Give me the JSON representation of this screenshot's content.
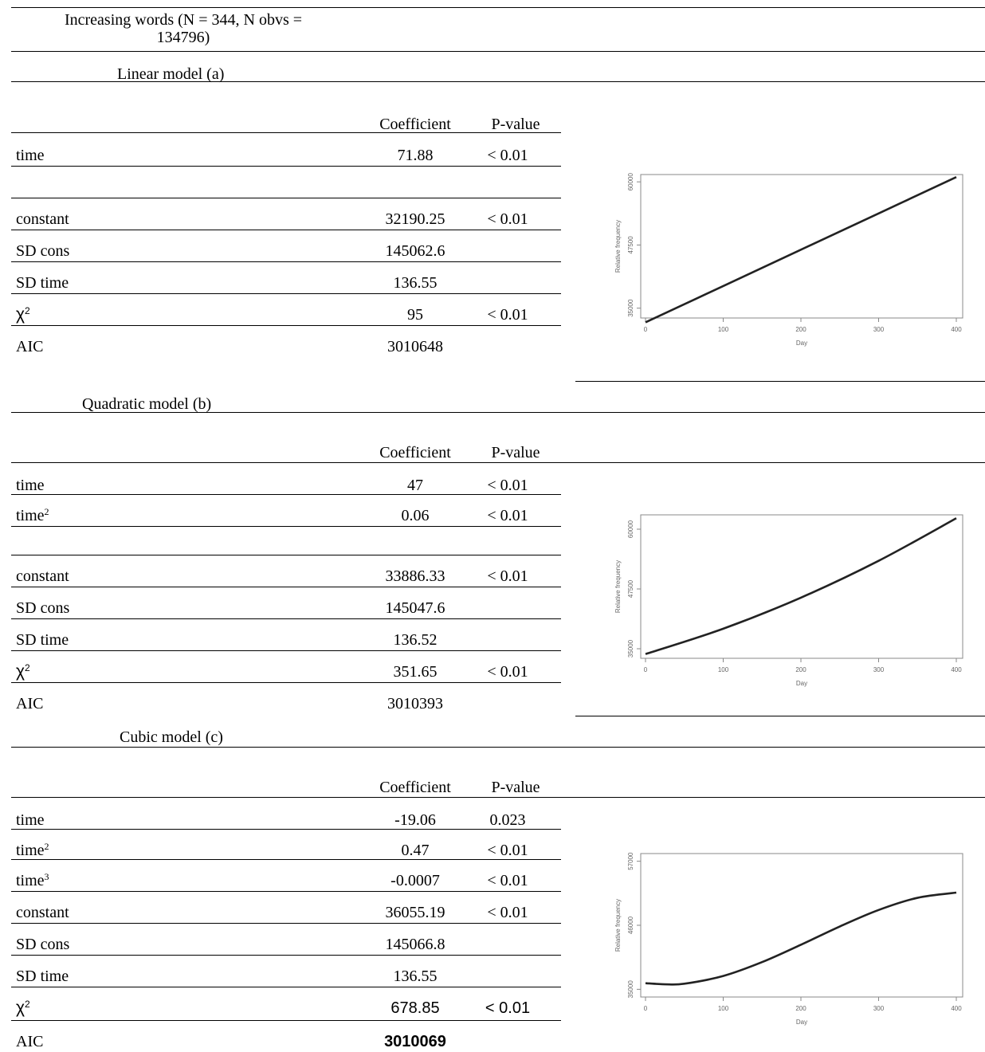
{
  "header": {
    "line1": "Increasing words (N = 344, N obvs =",
    "line2": "134796)"
  },
  "columns": {
    "coefficient": "Coefficient",
    "pvalue": "P-value"
  },
  "models": [
    {
      "title": "Linear model (a)",
      "rows": [
        {
          "label": "time",
          "sup": "",
          "coef": "71.88",
          "p": "< 0.01"
        },
        {
          "label": "",
          "sup": "",
          "coef": "",
          "p": ""
        },
        {
          "label": "constant",
          "sup": "",
          "coef": "32190.25",
          "p": "< 0.01"
        },
        {
          "label": "SD cons",
          "sup": "",
          "coef": "145062.6",
          "p": ""
        },
        {
          "label": "SD time",
          "sup": "",
          "coef": "136.55",
          "p": ""
        },
        {
          "label": "χ",
          "sup": "2",
          "coef": "95",
          "p": "< 0.01"
        },
        {
          "label": "AIC",
          "sup": "",
          "coef": "3010648",
          "p": ""
        }
      ]
    },
    {
      "title": "Quadratic model (b)",
      "rows": [
        {
          "label": "time",
          "sup": "",
          "coef": "47",
          "p": "< 0.01"
        },
        {
          "label": "time",
          "sup": "2",
          "coef": "0.06",
          "p": "< 0.01"
        },
        {
          "label": "",
          "sup": "",
          "coef": "",
          "p": ""
        },
        {
          "label": "constant",
          "sup": "",
          "coef": "33886.33",
          "p": "< 0.01"
        },
        {
          "label": "SD cons",
          "sup": "",
          "coef": "145047.6",
          "p": ""
        },
        {
          "label": "SD time",
          "sup": "",
          "coef": "136.52",
          "p": ""
        },
        {
          "label": "χ",
          "sup": "2",
          "coef": "351.65",
          "p": "< 0.01"
        },
        {
          "label": "AIC",
          "sup": "",
          "coef": "3010393",
          "p": ""
        }
      ]
    },
    {
      "title": "Cubic model (c)",
      "rows": [
        {
          "label": "time",
          "sup": "",
          "coef": "-19.06",
          "p": "0.023"
        },
        {
          "label": "time",
          "sup": "2",
          "coef": "0.47",
          "p": "< 0.01"
        },
        {
          "label": "time",
          "sup": "3",
          "coef": "-0.0007",
          "p": "< 0.01"
        },
        {
          "label": "constant",
          "sup": "",
          "coef": "36055.19",
          "p": "< 0.01"
        },
        {
          "label": "SD cons",
          "sup": "",
          "coef": "145066.8",
          "p": ""
        },
        {
          "label": "SD time",
          "sup": "",
          "coef": "136.55",
          "p": ""
        },
        {
          "label": "χ",
          "sup": "2",
          "coef": "678.85",
          "p": "< 0.01"
        },
        {
          "label": "AIC",
          "sup": "",
          "coef": "3010069",
          "p": ""
        }
      ]
    }
  ],
  "chart_data": [
    {
      "type": "line",
      "xlabel": "Day",
      "ylabel": "Relative frequency",
      "xticks": [
        "0",
        "100",
        "200",
        "300",
        "400"
      ],
      "yticks": [
        "35000",
        "47500",
        "60000"
      ],
      "xlim": [
        0,
        400
      ],
      "ylim": [
        34000,
        60500
      ],
      "x": [
        0,
        100,
        200,
        300,
        400
      ],
      "series": [
        {
          "values": [
            32190,
            39378,
            46566,
            53754,
            60942
          ]
        }
      ]
    },
    {
      "type": "line",
      "xlabel": "Day",
      "ylabel": "Relative frequency",
      "xticks": [
        "0",
        "100",
        "200",
        "300",
        "400"
      ],
      "yticks": [
        "35000",
        "47500",
        "60000"
      ],
      "xlim": [
        0,
        400
      ],
      "ylim": [
        34000,
        62000
      ],
      "x": [
        0,
        100,
        200,
        300,
        400
      ],
      "series": [
        {
          "values": [
            33886,
            39186,
            45686,
            53386,
            62286
          ]
        }
      ]
    },
    {
      "type": "line",
      "xlabel": "Day",
      "ylabel": "Relative frequency",
      "xticks": [
        "0",
        "100",
        "200",
        "300",
        "400"
      ],
      "yticks": [
        "35000",
        "46000",
        "57000"
      ],
      "xlim": [
        0,
        400
      ],
      "ylim": [
        34500,
        57500
      ],
      "x": [
        0,
        25,
        50,
        100,
        150,
        200,
        250,
        300,
        350,
        400
      ],
      "series": [
        {
          "values": [
            36055,
            35864,
            35959,
            37294,
            39676,
            42659,
            45792,
            48627,
            50716,
            51611
          ]
        }
      ]
    }
  ]
}
